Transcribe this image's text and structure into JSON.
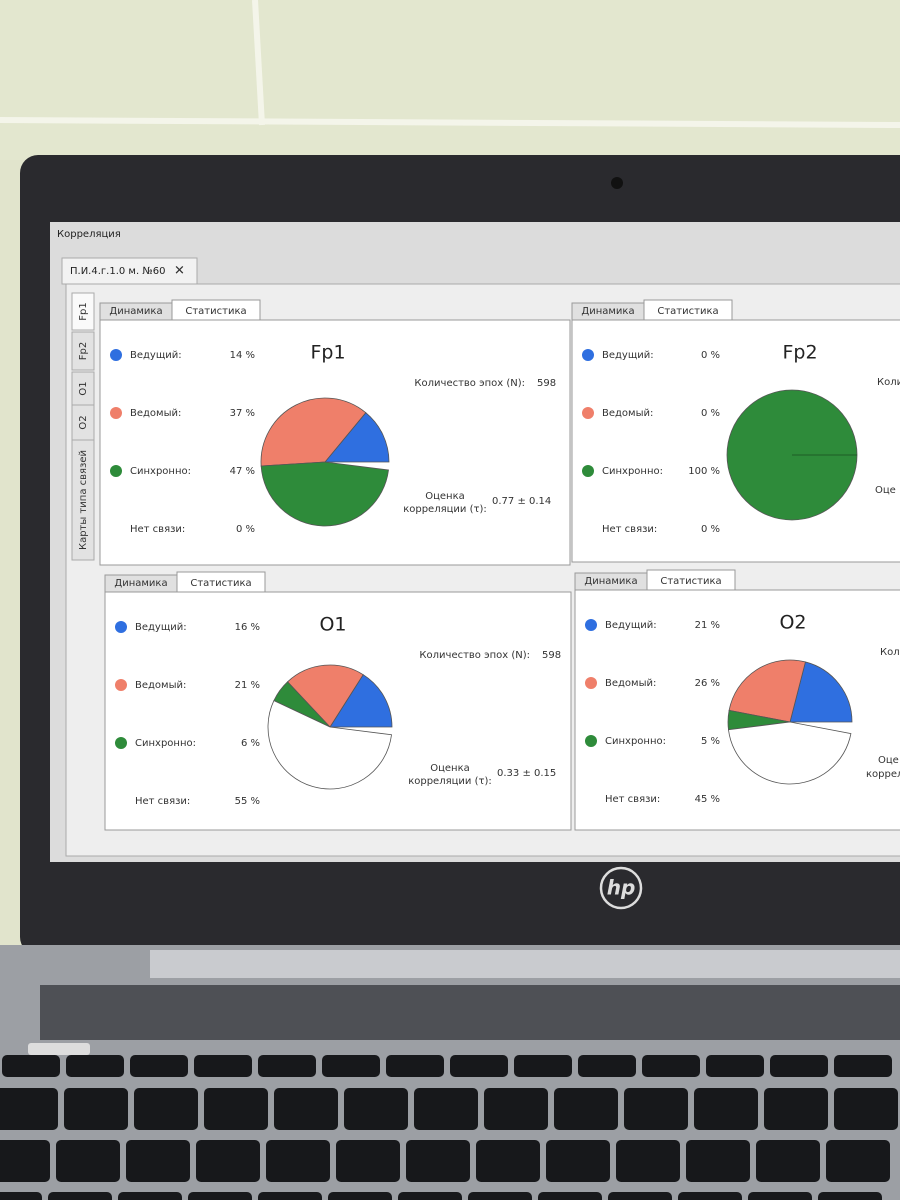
{
  "window": {
    "title": "Корреляция",
    "tab": "П.И.4.г.1.0 м. №60"
  },
  "side_tabs": [
    "Fp1",
    "Fp2",
    "O1",
    "O2",
    "Карты типа связей"
  ],
  "panels": [
    {
      "tabs": [
        "Динамика",
        "Статистика"
      ],
      "title": "Fp1",
      "items": [
        {
          "label": "Ведущий:",
          "value": 14,
          "value_label": "14 %",
          "color": "#2f6fe0"
        },
        {
          "label": "Ведомый:",
          "value": 37,
          "value_label": "37 %",
          "color": "#ef7f6a"
        },
        {
          "label": "Синхронно:",
          "value": 47,
          "value_label": "47 %",
          "color": "#2e8b3a"
        },
        {
          "label": "Нет связи:",
          "value": 0,
          "value_label": "0 %",
          "color": "#ffffff"
        }
      ],
      "epochs_label": "Количество эпох (N):",
      "epochs": 598,
      "corr_label": [
        "Оценка",
        "корреляции (τ):"
      ],
      "corr": "0.77 ± 0.14"
    },
    {
      "tabs": [
        "Динамика",
        "Статистика"
      ],
      "title": "Fp2",
      "items": [
        {
          "label": "Ведущий:",
          "value": 0,
          "value_label": "0 %",
          "color": "#2f6fe0"
        },
        {
          "label": "Ведомый:",
          "value": 0,
          "value_label": "0 %",
          "color": "#ef7f6a"
        },
        {
          "label": "Синхронно:",
          "value": 100,
          "value_label": "100 %",
          "color": "#2e8b3a"
        },
        {
          "label": "Нет связи:",
          "value": 0,
          "value_label": "0 %",
          "color": "#ffffff"
        }
      ],
      "epochs_label": "Коли",
      "corr_label": [
        "Оце"
      ]
    },
    {
      "tabs": [
        "Динамика",
        "Статистика"
      ],
      "title": "O1",
      "items": [
        {
          "label": "Ведущий:",
          "value": 16,
          "value_label": "16 %",
          "color": "#2f6fe0"
        },
        {
          "label": "Ведомый:",
          "value": 21,
          "value_label": "21 %",
          "color": "#ef7f6a"
        },
        {
          "label": "Синхронно:",
          "value": 6,
          "value_label": "6 %",
          "color": "#2e8b3a"
        },
        {
          "label": "Нет связи:",
          "value": 55,
          "value_label": "55 %",
          "color": "#ffffff"
        }
      ],
      "epochs_label": "Количество эпох (N):",
      "epochs": 598,
      "corr_label": [
        "Оценка",
        "корреляции (τ):"
      ],
      "corr": "0.33 ± 0.15"
    },
    {
      "tabs": [
        "Динамика",
        "Статистика"
      ],
      "title": "O2",
      "items": [
        {
          "label": "Ведущий:",
          "value": 21,
          "value_label": "21 %",
          "color": "#2f6fe0"
        },
        {
          "label": "Ведомый:",
          "value": 26,
          "value_label": "26 %",
          "color": "#ef7f6a"
        },
        {
          "label": "Синхронно:",
          "value": 5,
          "value_label": "5 %",
          "color": "#2e8b3a"
        },
        {
          "label": "Нет связи:",
          "value": 45,
          "value_label": "45 %",
          "color": "#ffffff"
        }
      ],
      "epochs_label": "Коли",
      "corr_label": [
        "Оце",
        "корреля"
      ]
    }
  ],
  "laptop": {
    "logo": "hp"
  }
}
